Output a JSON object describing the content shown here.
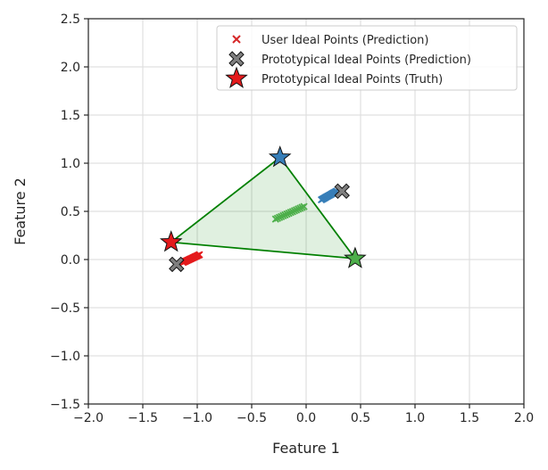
{
  "chart_data": {
    "type": "scatter",
    "xlabel": "Feature 1",
    "ylabel": "Feature 2",
    "xlim": [
      -2.0,
      2.0
    ],
    "ylim": [
      -1.5,
      2.5
    ],
    "xticks": [
      "−2.0",
      "−1.5",
      "−1.0",
      "−0.5",
      "0.0",
      "0.5",
      "1.0",
      "1.5",
      "2.0"
    ],
    "yticks": [
      "−1.5",
      "−1.0",
      "−0.5",
      "0.0",
      "0.5",
      "1.0",
      "1.5",
      "2.0",
      "2.5"
    ],
    "grid": true,
    "legend_position": "top-right",
    "legend": [
      {
        "label": "User Ideal Points (Prediction)",
        "marker": "x",
        "color": "#d62728"
      },
      {
        "label": "Prototypical Ideal Points (Prediction)",
        "marker": "X",
        "color": "#808080"
      },
      {
        "label": "Prototypical Ideal Points (Truth)",
        "marker": "star",
        "color": "#e41a1c"
      }
    ],
    "truth_points": [
      {
        "x": -1.24,
        "y": 0.18,
        "color": "#e41a1c"
      },
      {
        "x": -0.24,
        "y": 1.06,
        "color": "#377eb8"
      },
      {
        "x": 0.45,
        "y": 0.01,
        "color": "#4daf4a"
      }
    ],
    "predicted_prototypes": [
      {
        "x": -1.19,
        "y": -0.05
      },
      {
        "x": 0.33,
        "y": 0.71
      }
    ],
    "user_clusters": [
      {
        "color": "#e41a1c",
        "from": [
          -1.13,
          -0.03
        ],
        "to": [
          -0.98,
          0.05
        ]
      },
      {
        "color": "#377eb8",
        "from": [
          0.14,
          0.62
        ],
        "to": [
          0.28,
          0.71
        ]
      },
      {
        "color": "#4daf4a",
        "from": [
          -0.28,
          0.42
        ],
        "to": [
          -0.02,
          0.55
        ]
      }
    ],
    "triangle_color": "#008000"
  }
}
